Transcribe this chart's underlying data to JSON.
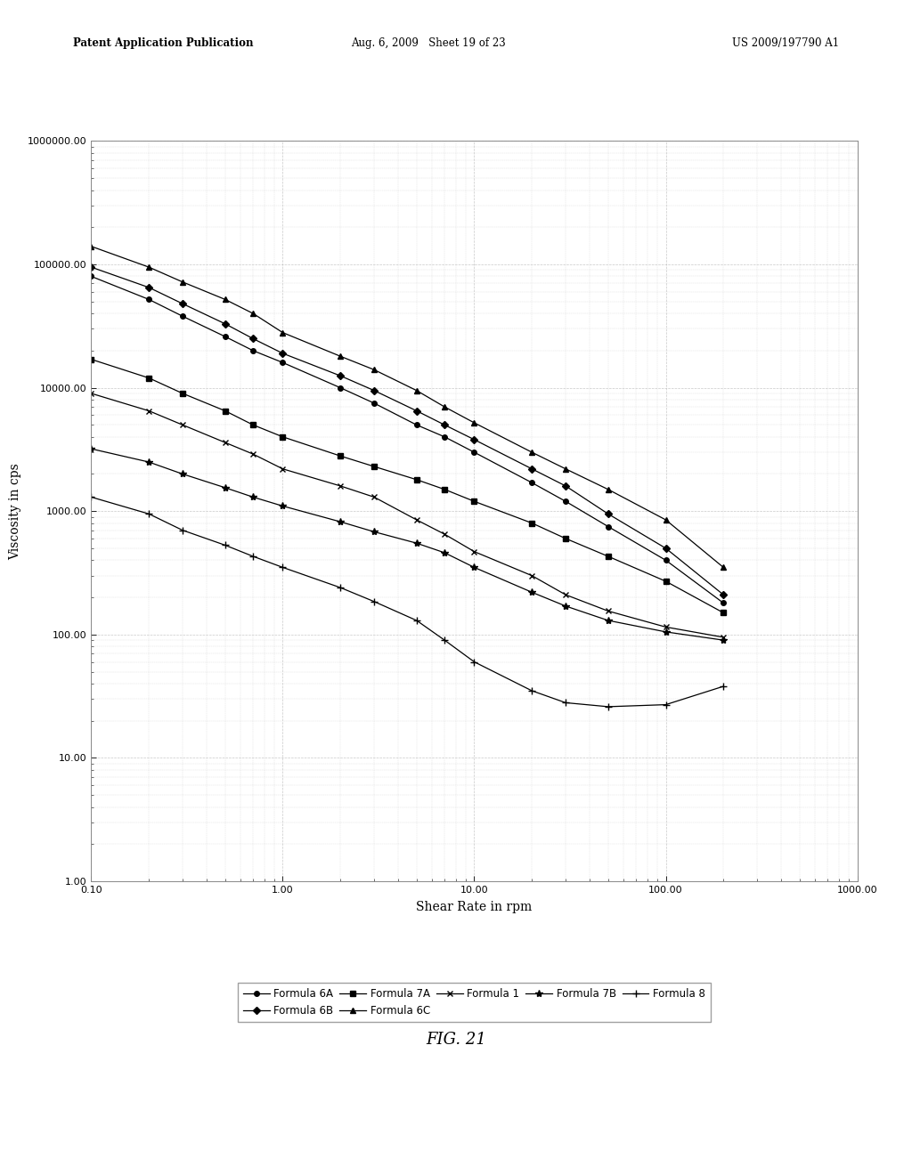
{
  "title": "",
  "xlabel": "Shear Rate in rpm",
  "ylabel": "Viscosity in cps",
  "fig_label": "FIG. 21",
  "header_left": "Patent Application Publication",
  "header_mid": "Aug. 6, 2009   Sheet 19 of 23",
  "header_right": "US 2009/197790 A1",
  "xlim": [
    0.1,
    1000.0
  ],
  "ylim": [
    1.0,
    1000000.0
  ],
  "background_color": "#ffffff",
  "grid_color": "#bbbbbb",
  "series": [
    {
      "label": "Formula 6A",
      "color": "#000000",
      "marker": "o",
      "marker_size": 4,
      "x": [
        0.1,
        0.2,
        0.3,
        0.5,
        0.7,
        1.0,
        2.0,
        3.0,
        5.0,
        7.0,
        10.0,
        20.0,
        30.0,
        50.0,
        100.0,
        200.0
      ],
      "y": [
        80000,
        52000,
        38000,
        26000,
        20000,
        16000,
        10000,
        7500,
        5000,
        4000,
        3000,
        1700,
        1200,
        750,
        400,
        180
      ]
    },
    {
      "label": "Formula 6B",
      "color": "#000000",
      "marker": "D",
      "marker_size": 4,
      "x": [
        0.1,
        0.2,
        0.3,
        0.5,
        0.7,
        1.0,
        2.0,
        3.0,
        5.0,
        7.0,
        10.0,
        20.0,
        30.0,
        50.0,
        100.0,
        200.0
      ],
      "y": [
        95000,
        65000,
        48000,
        33000,
        25000,
        19000,
        12500,
        9500,
        6500,
        5000,
        3800,
        2200,
        1600,
        950,
        500,
        210
      ]
    },
    {
      "label": "Formula 7A",
      "color": "#000000",
      "marker": "s",
      "marker_size": 4,
      "x": [
        0.1,
        0.2,
        0.3,
        0.5,
        0.7,
        1.0,
        2.0,
        3.0,
        5.0,
        7.0,
        10.0,
        20.0,
        30.0,
        50.0,
        100.0,
        200.0
      ],
      "y": [
        17000,
        12000,
        9000,
        6500,
        5000,
        4000,
        2800,
        2300,
        1800,
        1500,
        1200,
        800,
        600,
        430,
        270,
        150
      ]
    },
    {
      "label": "Formula 6C",
      "color": "#000000",
      "marker": "^",
      "marker_size": 5,
      "x": [
        0.1,
        0.2,
        0.3,
        0.5,
        0.7,
        1.0,
        2.0,
        3.0,
        5.0,
        7.0,
        10.0,
        20.0,
        30.0,
        50.0,
        100.0,
        200.0
      ],
      "y": [
        140000,
        95000,
        72000,
        52000,
        40000,
        28000,
        18000,
        14000,
        9500,
        7000,
        5200,
        3000,
        2200,
        1500,
        850,
        350
      ]
    },
    {
      "label": "Formula 1",
      "color": "#000000",
      "marker": "x",
      "marker_size": 5,
      "x": [
        0.1,
        0.2,
        0.3,
        0.5,
        0.7,
        1.0,
        2.0,
        3.0,
        5.0,
        7.0,
        10.0,
        20.0,
        30.0,
        50.0,
        100.0,
        200.0
      ],
      "y": [
        9000,
        6500,
        5000,
        3600,
        2900,
        2200,
        1600,
        1300,
        850,
        650,
        470,
        300,
        210,
        155,
        115,
        95
      ]
    },
    {
      "label": "Formula 7B",
      "color": "#000000",
      "marker": "*",
      "marker_size": 6,
      "x": [
        0.1,
        0.2,
        0.3,
        0.5,
        0.7,
        1.0,
        2.0,
        3.0,
        5.0,
        7.0,
        10.0,
        20.0,
        30.0,
        50.0,
        100.0,
        200.0
      ],
      "y": [
        3200,
        2500,
        2000,
        1550,
        1300,
        1100,
        820,
        680,
        550,
        460,
        350,
        220,
        170,
        130,
        105,
        90
      ]
    },
    {
      "label": "Formula 8",
      "color": "#000000",
      "marker": "+",
      "marker_size": 6,
      "x": [
        0.1,
        0.2,
        0.3,
        0.5,
        0.7,
        1.0,
        2.0,
        3.0,
        5.0,
        7.0,
        10.0,
        20.0,
        30.0,
        50.0,
        100.0,
        200.0
      ],
      "y": [
        1300,
        950,
        700,
        530,
        430,
        350,
        240,
        185,
        130,
        90,
        60,
        35,
        28,
        26,
        27,
        38
      ]
    }
  ],
  "xtick_vals": [
    0.1,
    1.0,
    10.0,
    100.0,
    1000.0
  ],
  "xtick_labels": [
    "0.10",
    "1.00",
    "10.00",
    "100.00",
    "1000.00"
  ],
  "ytick_vals": [
    1.0,
    10.0,
    100.0,
    1000.0,
    10000.0,
    100000.0,
    1000000.0
  ],
  "ytick_labels": [
    "1.00",
    "10.00",
    "100.00",
    "1000.00",
    "10000.00",
    "100000.00",
    "1000000.00"
  ]
}
